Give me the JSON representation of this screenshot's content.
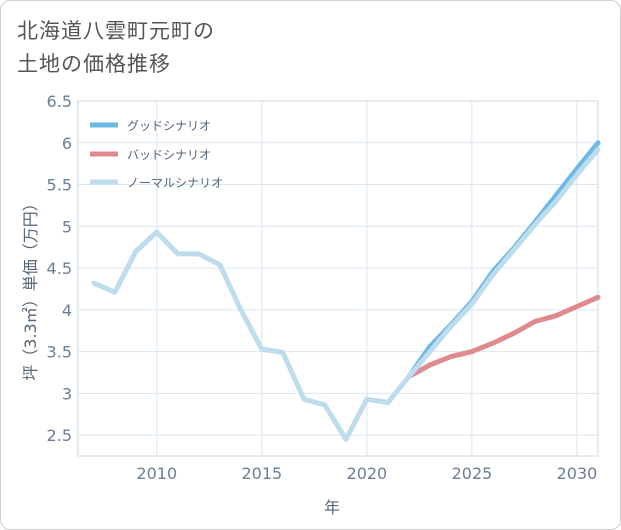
{
  "title_lines": [
    "北海道八雲町元町の",
    "土地の価格推移"
  ],
  "colors": {
    "good": "#6cb8e6",
    "bad": "#e08a90",
    "normal": "#bddcec",
    "grid": "#d9e6f0",
    "axis_text": "#6a7f95"
  },
  "chart_data": {
    "type": "line",
    "title": "北海道八雲町元町の土地の価格推移",
    "xlabel": "年",
    "ylabel": "坪（3.3㎡）単価（万円）",
    "xlim": [
      2006.25,
      2031
    ],
    "ylim": [
      2.25,
      6.5
    ],
    "x_ticks": [
      2010,
      2015,
      2020,
      2025,
      2030
    ],
    "x_tick_labels": [
      "2010",
      "2015",
      "2020",
      "2025",
      "2030"
    ],
    "y_ticks": [
      2.5,
      3,
      3.5,
      4,
      4.5,
      5,
      5.5,
      6,
      6.5
    ],
    "y_tick_labels": [
      "2.5",
      "3",
      "3.5",
      "4",
      "4.5",
      "5",
      "5.5",
      "6",
      "6.5"
    ],
    "legend_position": "top-left",
    "series": [
      {
        "name": "グッドシナリオ",
        "color": "#6cb8e6",
        "x": [
          2022,
          2023,
          2024,
          2025,
          2026,
          2027,
          2028,
          2029,
          2030,
          2031
        ],
        "values": [
          3.2,
          3.56,
          3.82,
          4.1,
          4.46,
          4.74,
          5.05,
          5.37,
          5.69,
          6.0
        ]
      },
      {
        "name": "バッドシナリオ",
        "color": "#e08a90",
        "x": [
          2022,
          2023,
          2024,
          2025,
          2026,
          2027,
          2028,
          2029,
          2030,
          2031
        ],
        "values": [
          3.2,
          3.34,
          3.44,
          3.5,
          3.6,
          3.72,
          3.86,
          3.93,
          4.04,
          4.15
        ]
      },
      {
        "name": "ノーマルシナリオ",
        "color": "#bddcec",
        "x": [
          2007,
          2008,
          2009,
          2010,
          2011,
          2012,
          2013,
          2014,
          2015,
          2016,
          2017,
          2018,
          2019,
          2020,
          2021,
          2022,
          2023,
          2024,
          2025,
          2026,
          2027,
          2028,
          2029,
          2030,
          2031
        ],
        "values": [
          4.32,
          4.21,
          4.7,
          4.93,
          4.67,
          4.67,
          4.54,
          4.0,
          3.53,
          3.49,
          2.93,
          2.86,
          2.45,
          2.93,
          2.89,
          3.2,
          3.5,
          3.8,
          4.07,
          4.42,
          4.72,
          5.02,
          5.3,
          5.62,
          5.92
        ]
      }
    ]
  }
}
